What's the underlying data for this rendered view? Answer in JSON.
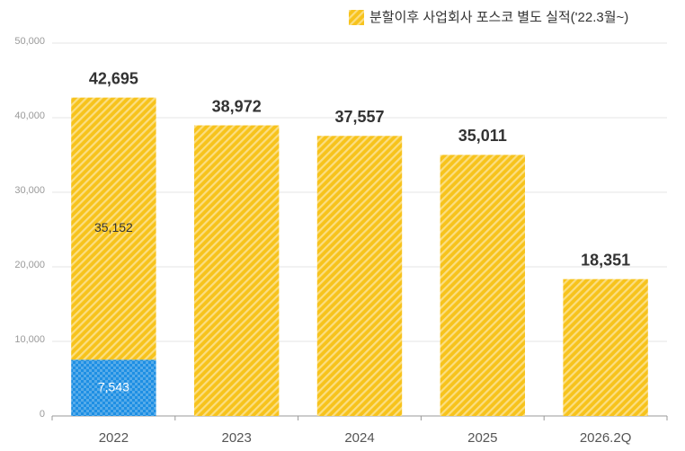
{
  "chart_data": {
    "type": "stacked_bar",
    "categories": [
      "2022",
      "2023",
      "2024",
      "2025",
      "2026.2Q"
    ],
    "series": [
      {
        "color": "#1e8fe3",
        "values": [
          7543,
          null,
          null,
          null,
          null
        ],
        "value_labels": [
          "7,543",
          null,
          null,
          null,
          null
        ]
      },
      {
        "name": "분할이후 사업회사 포스코 별도 실적('22.3월~)",
        "color": "#f7c31c",
        "values": [
          35152,
          38972,
          37557,
          35011,
          18351
        ],
        "value_labels": [
          "35,152",
          null,
          null,
          null,
          null
        ]
      }
    ],
    "totals": [
      42695,
      38972,
      37557,
      35011,
      18351
    ],
    "total_labels": [
      "42,695",
      "38,972",
      "37,557",
      "35,011",
      "18,351"
    ],
    "ylim": [
      0,
      50000
    ],
    "yticks": [
      0,
      {
        "value": 10000,
        "label": "10,000"
      },
      {
        "value": 20000,
        "label": "20,000"
      },
      {
        "value": 30000,
        "label": "30,000"
      },
      {
        "value": 40000,
        "label": "40,000"
      },
      {
        "value": 50000,
        "label": "50,000"
      }
    ],
    "grid": true,
    "legend": "top-right"
  }
}
